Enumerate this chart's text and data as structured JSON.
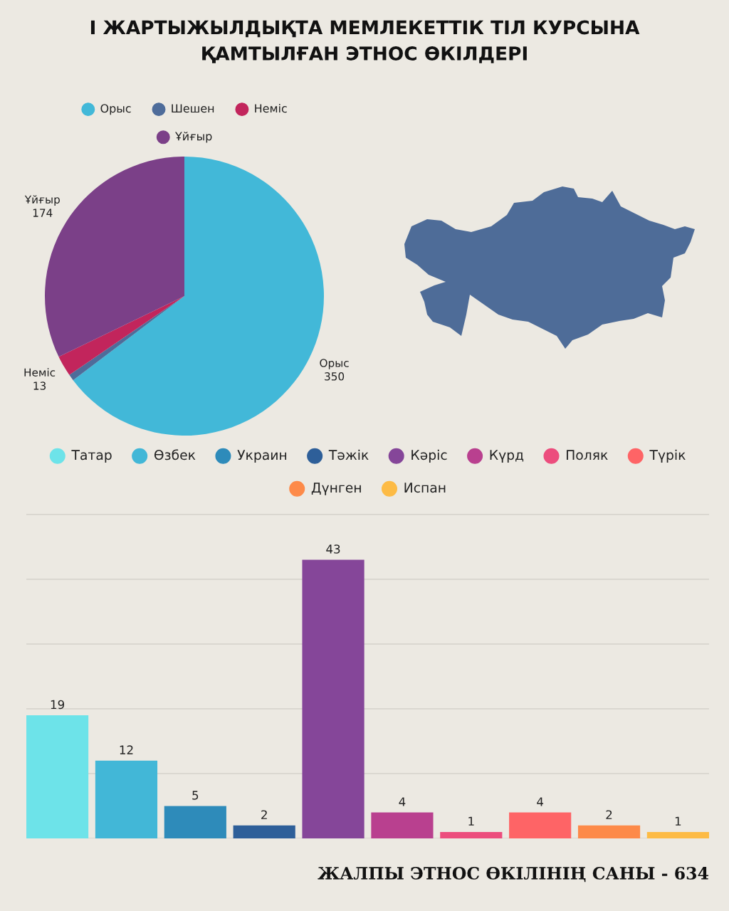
{
  "chart_data": [
    {
      "type": "pie",
      "title": "І ЖАРТЫЖЫЛДЫҚТА МЕМЛЕКЕТТІК ТІЛ КУРСЫНА\nҚАМТЫЛҒАН ЭТНОС ӨКІЛДЕРІ",
      "categories": [
        "Орыс",
        "Шешен",
        "Неміс",
        "Ұйғыр"
      ],
      "values": [
        350,
        4,
        13,
        174
      ],
      "colors": [
        "#42b8d8",
        "#4e6c9a",
        "#c2255c",
        "#7b4088"
      ],
      "value_labels": [
        "350",
        null,
        "13",
        "174"
      ],
      "legend": "top"
    },
    {
      "type": "bar",
      "stacked": true,
      "categories": [
        null,
        null,
        null,
        null,
        null,
        null,
        null,
        null,
        null,
        null
      ],
      "series": [
        {
          "name": "Татар",
          "color": "#6de3e9",
          "values": [
            19,
            null,
            null,
            null,
            null,
            null,
            null,
            null,
            null,
            null
          ]
        },
        {
          "name": "Өзбек",
          "color": "#42b7d7",
          "values": [
            null,
            12,
            null,
            null,
            null,
            null,
            null,
            null,
            null,
            null
          ]
        },
        {
          "name": "Украин",
          "color": "#2e8bba",
          "values": [
            null,
            null,
            5,
            null,
            null,
            null,
            null,
            null,
            null,
            null
          ]
        },
        {
          "name": "Тәжік",
          "color": "#2e5f99",
          "values": [
            null,
            null,
            null,
            2,
            null,
            null,
            null,
            null,
            null,
            null
          ]
        },
        {
          "name": "Кәріс",
          "color": "#854699",
          "values": [
            null,
            null,
            null,
            null,
            43,
            null,
            null,
            null,
            null,
            null
          ]
        },
        {
          "name": "Күрд",
          "color": "#b9408f",
          "values": [
            null,
            null,
            null,
            null,
            null,
            4,
            null,
            null,
            null,
            null
          ]
        },
        {
          "name": "Поляк",
          "color": "#ec4d7d",
          "values": [
            null,
            null,
            null,
            null,
            null,
            null,
            1,
            null,
            null,
            null
          ]
        },
        {
          "name": "Түрік",
          "color": "#fe6466",
          "values": [
            null,
            null,
            null,
            null,
            null,
            null,
            null,
            4,
            null,
            null
          ]
        },
        {
          "name": "Дүнген",
          "color": "#fd8a49",
          "values": [
            null,
            null,
            null,
            null,
            null,
            null,
            null,
            null,
            2,
            null
          ]
        },
        {
          "name": "Испан",
          "color": "#fdbb45",
          "values": [
            null,
            null,
            null,
            null,
            null,
            null,
            null,
            null,
            null,
            1
          ]
        }
      ],
      "grid": "y",
      "tick_labels": false,
      "data_labels": true,
      "legend": "top",
      "annotations": [
        "ЖАЛПЫ ЭТНОС ӨКІЛІНІҢ САНЫ - 634"
      ]
    }
  ]
}
